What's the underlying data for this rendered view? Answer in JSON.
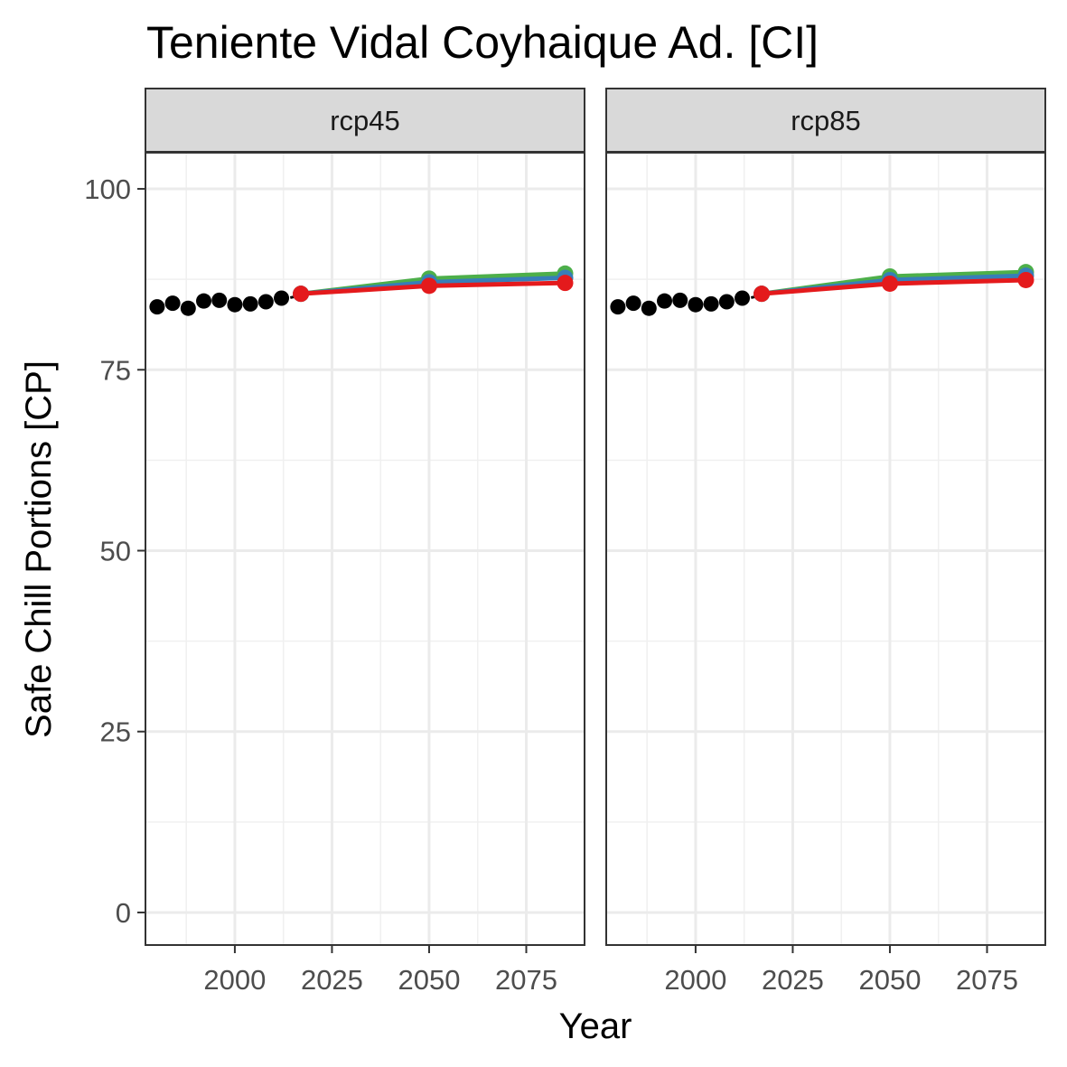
{
  "chart_data": {
    "type": "line",
    "title": "Teniente Vidal Coyhaique Ad. [CI]",
    "xlabel": "Year",
    "ylabel": "Safe Chill Portions [CP]",
    "xlim": [
      1977,
      2090
    ],
    "ylim": [
      -4.5,
      105
    ],
    "x_ticks": [
      2000,
      2025,
      2050,
      2075
    ],
    "y_ticks": [
      0,
      25,
      50,
      75,
      100
    ],
    "grid": true,
    "colors": {
      "historic": "#000000",
      "green": "#4daf4a",
      "blue": "#377eb8",
      "red": "#e41a1c"
    },
    "panels": [
      {
        "label": "rcp45",
        "historic": {
          "x": [
            1980,
            1984,
            1988,
            1992,
            1996,
            2000,
            2004,
            2008,
            2012
          ],
          "y": [
            83.7,
            84.2,
            83.5,
            84.5,
            84.6,
            84.0,
            84.1,
            84.4,
            84.9
          ]
        },
        "historic_trend": {
          "x": [
            2012,
            2018
          ],
          "y": [
            84.7,
            85.4
          ]
        },
        "series": [
          {
            "color_key": "green",
            "x": [
              2017,
              2050,
              2085
            ],
            "y": [
              85.5,
              87.6,
              88.3
            ]
          },
          {
            "color_key": "blue",
            "x": [
              2017,
              2050,
              2085
            ],
            "y": [
              85.5,
              87.1,
              87.7
            ]
          },
          {
            "color_key": "red",
            "x": [
              2017,
              2050,
              2085
            ],
            "y": [
              85.5,
              86.6,
              87.0
            ]
          }
        ]
      },
      {
        "label": "rcp85",
        "historic": {
          "x": [
            1980,
            1984,
            1988,
            1992,
            1996,
            2000,
            2004,
            2008,
            2012
          ],
          "y": [
            83.7,
            84.2,
            83.5,
            84.5,
            84.6,
            84.0,
            84.1,
            84.4,
            84.9
          ]
        },
        "historic_trend": {
          "x": [
            2012,
            2018
          ],
          "y": [
            84.7,
            85.4
          ]
        },
        "series": [
          {
            "color_key": "green",
            "x": [
              2017,
              2050,
              2085
            ],
            "y": [
              85.5,
              87.9,
              88.5
            ]
          },
          {
            "color_key": "blue",
            "x": [
              2017,
              2050,
              2085
            ],
            "y": [
              85.5,
              87.4,
              88.0
            ]
          },
          {
            "color_key": "red",
            "x": [
              2017,
              2050,
              2085
            ],
            "y": [
              85.5,
              86.9,
              87.4
            ]
          }
        ]
      }
    ]
  }
}
